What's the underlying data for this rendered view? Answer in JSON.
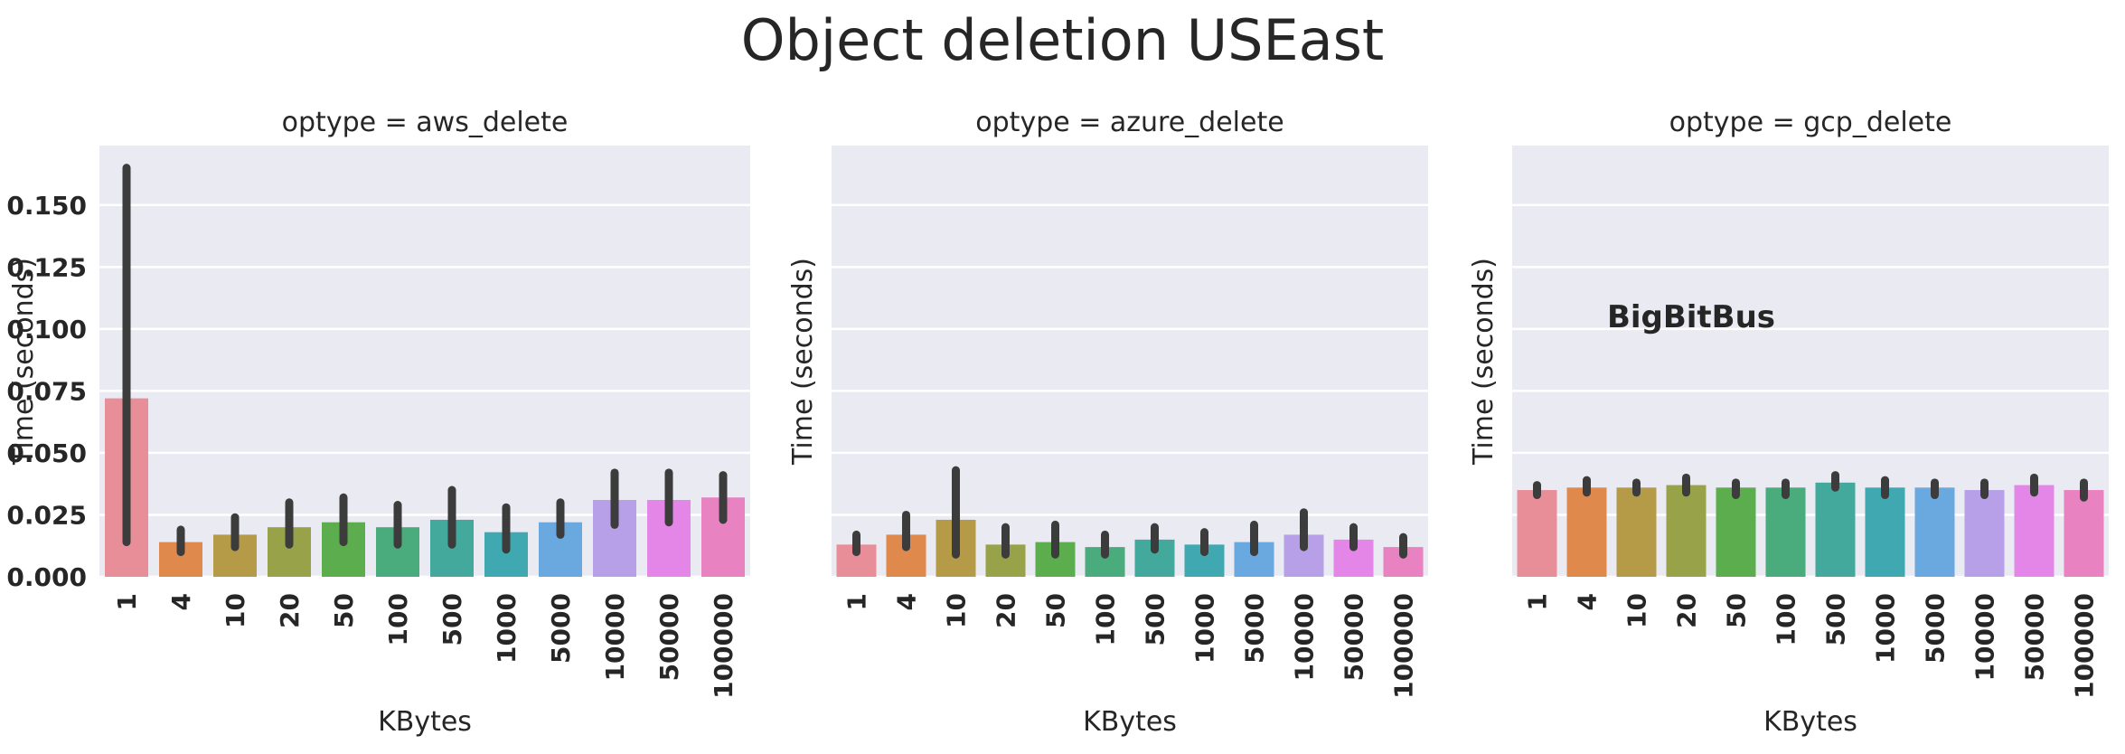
{
  "title": "Object deletion USEast",
  "colors": {
    "panel_bg": "#eaeaf2",
    "grid": "#ffffff",
    "errorbar": "#3c3c3c",
    "palette": [
      "#e88e99",
      "#e0894c",
      "#b59a48",
      "#98a248",
      "#5cad4d",
      "#4aab7c",
      "#42a99c",
      "#3fa8b1",
      "#6aa8e0",
      "#b7a0e8",
      "#e486e8",
      "#e882c0"
    ]
  },
  "chart_data": [
    {
      "type": "bar",
      "title": "optype = aws_delete",
      "xlabel": "KBytes",
      "ylabel": "Time (seconds)",
      "categories": [
        "1",
        "4",
        "10",
        "20",
        "50",
        "100",
        "500",
        "1000",
        "5000",
        "10000",
        "50000",
        "100000"
      ],
      "values": [
        0.072,
        0.014,
        0.017,
        0.02,
        0.022,
        0.02,
        0.023,
        0.018,
        0.022,
        0.031,
        0.031,
        0.032
      ],
      "error_low": [
        0.014,
        0.01,
        0.012,
        0.013,
        0.014,
        0.013,
        0.013,
        0.011,
        0.017,
        0.021,
        0.022,
        0.023
      ],
      "error_high": [
        0.165,
        0.019,
        0.024,
        0.03,
        0.032,
        0.029,
        0.035,
        0.028,
        0.03,
        0.042,
        0.042,
        0.041
      ],
      "ylim": [
        0,
        0.174
      ],
      "yticks": [
        "0.000",
        "0.025",
        "0.050",
        "0.075",
        "0.100",
        "0.125",
        "0.150"
      ],
      "ytick_values": [
        0,
        0.025,
        0.05,
        0.075,
        0.1,
        0.125,
        0.15
      ],
      "grid": true
    },
    {
      "type": "bar",
      "title": "optype = azure_delete",
      "xlabel": "",
      "ylabel": "Time (seconds)",
      "categories": [
        "1",
        "4",
        "10",
        "20",
        "50",
        "100",
        "500",
        "1000",
        "5000",
        "10000",
        "50000",
        "100000"
      ],
      "values": [
        0.013,
        0.017,
        0.023,
        0.013,
        0.014,
        0.012,
        0.015,
        0.013,
        0.014,
        0.017,
        0.015,
        0.012
      ],
      "error_low": [
        0.01,
        0.012,
        0.009,
        0.009,
        0.009,
        0.009,
        0.011,
        0.01,
        0.01,
        0.012,
        0.012,
        0.009
      ],
      "error_high": [
        0.017,
        0.025,
        0.043,
        0.02,
        0.021,
        0.017,
        0.02,
        0.018,
        0.021,
        0.026,
        0.02,
        0.016
      ],
      "ylim": [
        0,
        0.174
      ],
      "ytick_values": [
        0,
        0.025,
        0.05,
        0.075,
        0.1,
        0.125,
        0.15
      ],
      "grid": true
    },
    {
      "type": "bar",
      "title": "optype = gcp_delete",
      "xlabel": "",
      "ylabel": "Time (seconds)",
      "categories": [
        "1",
        "4",
        "10",
        "20",
        "50",
        "100",
        "500",
        "1000",
        "5000",
        "10000",
        "50000",
        "100000"
      ],
      "values": [
        0.035,
        0.036,
        0.036,
        0.037,
        0.036,
        0.036,
        0.038,
        0.036,
        0.036,
        0.035,
        0.037,
        0.035
      ],
      "error_low": [
        0.033,
        0.034,
        0.034,
        0.034,
        0.033,
        0.033,
        0.036,
        0.033,
        0.033,
        0.033,
        0.034,
        0.032
      ],
      "error_high": [
        0.037,
        0.039,
        0.038,
        0.04,
        0.038,
        0.038,
        0.041,
        0.039,
        0.038,
        0.038,
        0.04,
        0.038
      ],
      "ylim": [
        0,
        0.174
      ],
      "ytick_values": [
        0,
        0.025,
        0.05,
        0.075,
        0.1,
        0.125,
        0.15
      ],
      "grid": true,
      "annotation": "BigBitBus"
    }
  ],
  "shared_xlabel": "KBytes"
}
